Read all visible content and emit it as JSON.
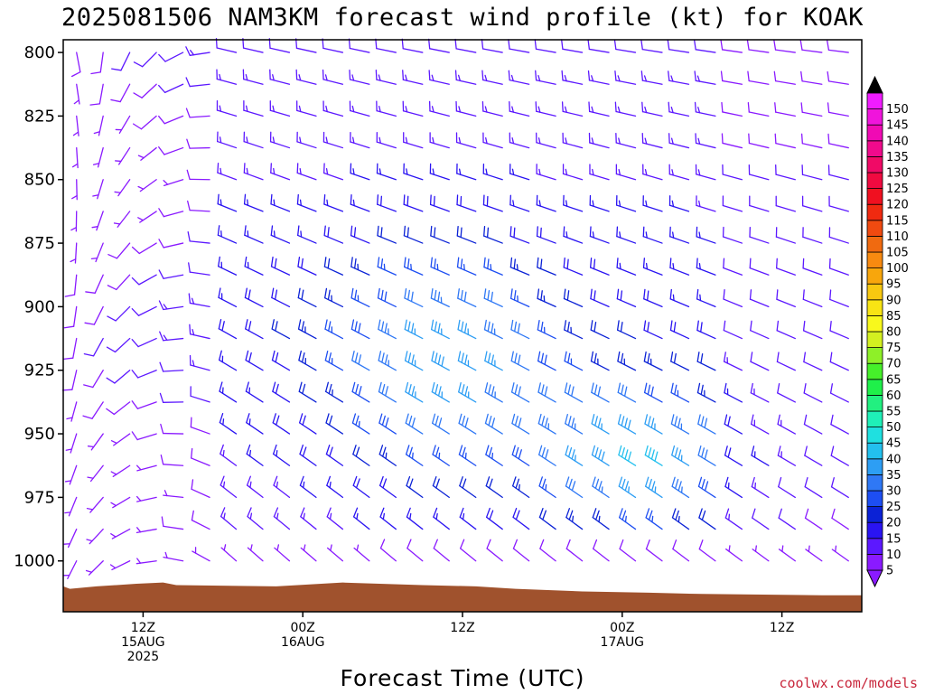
{
  "chart_data": {
    "type": "wind-profile",
    "title": "2025081506 NAM3KM forecast wind profile (kt) for KOAK",
    "xlabel": "Forecast Time (UTC)",
    "ylabel": "",
    "credit": "coolwx.com/models",
    "y_axis": {
      "scale": "pressure",
      "inverted": true,
      "range": [
        795,
        1020
      ],
      "ticks": [
        800,
        825,
        850,
        875,
        900,
        925,
        950,
        975,
        1000
      ]
    },
    "x_axis": {
      "range_hours": [
        0,
        60
      ],
      "ticks": [
        {
          "hour": 6,
          "lines": [
            "12Z",
            "15AUG",
            "2025"
          ]
        },
        {
          "hour": 18,
          "lines": [
            "00Z",
            "16AUG"
          ]
        },
        {
          "hour": 30,
          "lines": [
            "12Z"
          ]
        },
        {
          "hour": 42,
          "lines": [
            "00Z",
            "17AUG"
          ]
        },
        {
          "hour": 54,
          "lines": [
            "12Z"
          ]
        }
      ]
    },
    "levels_mb": [
      800,
      812.5,
      825,
      837.5,
      850,
      862.5,
      875,
      887.5,
      900,
      912.5,
      925,
      937.5,
      950,
      962.5,
      975,
      987.5,
      1000,
      1012.5
    ],
    "times_hours": [
      1,
      3,
      5,
      7,
      9,
      11,
      13,
      15,
      17,
      19,
      21,
      23,
      25,
      27,
      29,
      31,
      33,
      35,
      37,
      39,
      41,
      43,
      45,
      47,
      49,
      51,
      53,
      55,
      57,
      59
    ],
    "terrain_surface_mb": [
      [
        0,
        1010
      ],
      [
        0.5,
        1011
      ],
      [
        2.5,
        1010
      ],
      [
        5.5,
        1009
      ],
      [
        7.5,
        1008.5
      ],
      [
        8.5,
        1009.5
      ],
      [
        16,
        1010
      ],
      [
        21,
        1008.5
      ],
      [
        27,
        1009.5
      ],
      [
        31,
        1010
      ],
      [
        34,
        1011
      ],
      [
        39,
        1012
      ],
      [
        44,
        1012.5
      ],
      [
        48,
        1013
      ],
      [
        57,
        1013.5
      ],
      [
        60,
        1013.5
      ]
    ],
    "colorbar": {
      "ticks": [
        5,
        10,
        15,
        20,
        25,
        30,
        35,
        40,
        45,
        50,
        55,
        60,
        65,
        70,
        75,
        80,
        85,
        90,
        95,
        100,
        105,
        110,
        115,
        120,
        125,
        130,
        135,
        140,
        145,
        150
      ],
      "colors": [
        "#8a1aff",
        "#5c18ff",
        "#2a14f2",
        "#0b22d6",
        "#1d4ef2",
        "#2f78f5",
        "#2d9ef4",
        "#23c0ee",
        "#1fe0e0",
        "#1ff0b8",
        "#22f080",
        "#1ff04a",
        "#46f02a",
        "#8ef028",
        "#d4f020",
        "#f8f81c",
        "#f8e414",
        "#f8c810",
        "#f8a60c",
        "#f88a10",
        "#f06a10",
        "#f04a10",
        "#f02a10",
        "#f01020",
        "#f00a40",
        "#f00a66",
        "#f00a8c",
        "#f00ab4",
        "#f014dc",
        "#f01cff"
      ]
    }
  }
}
